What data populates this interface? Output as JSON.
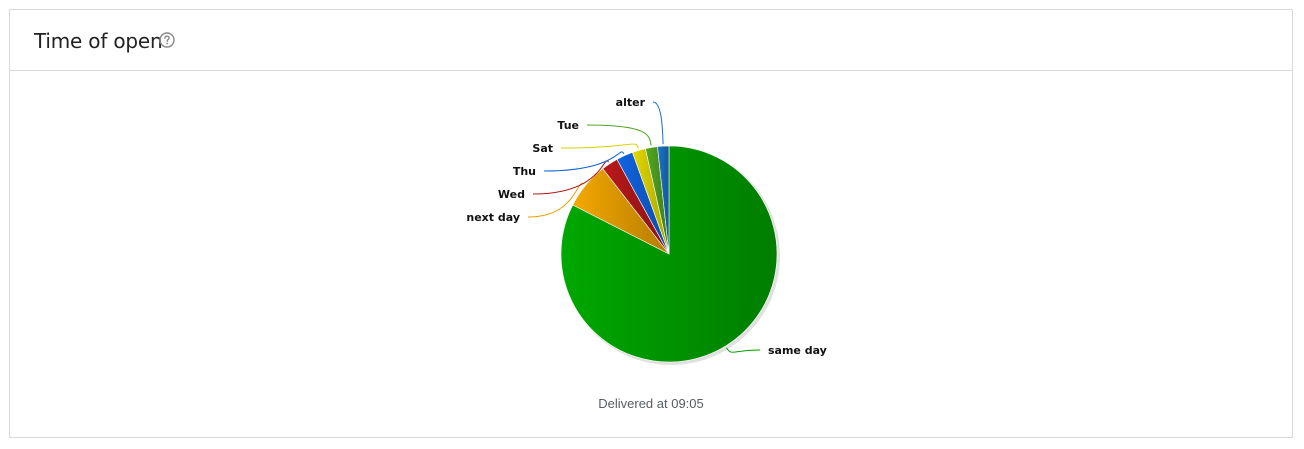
{
  "panel": {
    "title": "Time of open",
    "help_icon": "question-circle-icon"
  },
  "chart_data": {
    "type": "pie",
    "caption": "Delivered at 09:05",
    "slices": [
      {
        "label": "same day",
        "value": 82.5,
        "color": "#00a000"
      },
      {
        "label": "next day",
        "value": 7.0,
        "color": "#e8a000"
      },
      {
        "label": "Wed",
        "value": 2.5,
        "color": "#b01818"
      },
      {
        "label": "Thu",
        "value": 2.5,
        "color": "#1060d8"
      },
      {
        "label": "Sat",
        "value": 2.0,
        "color": "#d8d000"
      },
      {
        "label": "Tue",
        "value": 1.8,
        "color": "#50a020"
      },
      {
        "label": "alter",
        "value": 1.7,
        "color": "#1a70c0"
      }
    ]
  }
}
